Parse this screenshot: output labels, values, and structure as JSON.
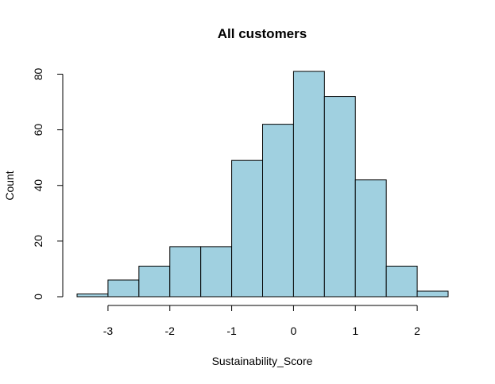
{
  "chart_data": {
    "type": "bar",
    "subtype": "histogram",
    "title": "All customers",
    "xlabel": "Sustainability_Score",
    "ylabel": "Count",
    "bar_color": "#A0D0E0",
    "edge_color": "#000000",
    "bin_edges": [
      -3.5,
      -3.0,
      -2.5,
      -2.0,
      -1.5,
      -1.0,
      -0.5,
      0.0,
      0.5,
      1.0,
      1.5,
      2.0,
      2.5
    ],
    "counts": [
      1,
      6,
      11,
      18,
      18,
      49,
      62,
      81,
      72,
      42,
      11,
      2
    ],
    "xlim": [
      -3.5,
      2.5
    ],
    "ylim": [
      0,
      81
    ],
    "x_ticks": [
      -3,
      -2,
      -1,
      0,
      1,
      2
    ],
    "x_tick_labels": [
      "-3",
      "-2",
      "-1",
      "0",
      "1",
      "2"
    ],
    "y_ticks": [
      0,
      20,
      40,
      60,
      80
    ],
    "y_tick_labels": [
      "0",
      "20",
      "40",
      "60",
      "80"
    ],
    "grid": false,
    "legend": "none"
  }
}
